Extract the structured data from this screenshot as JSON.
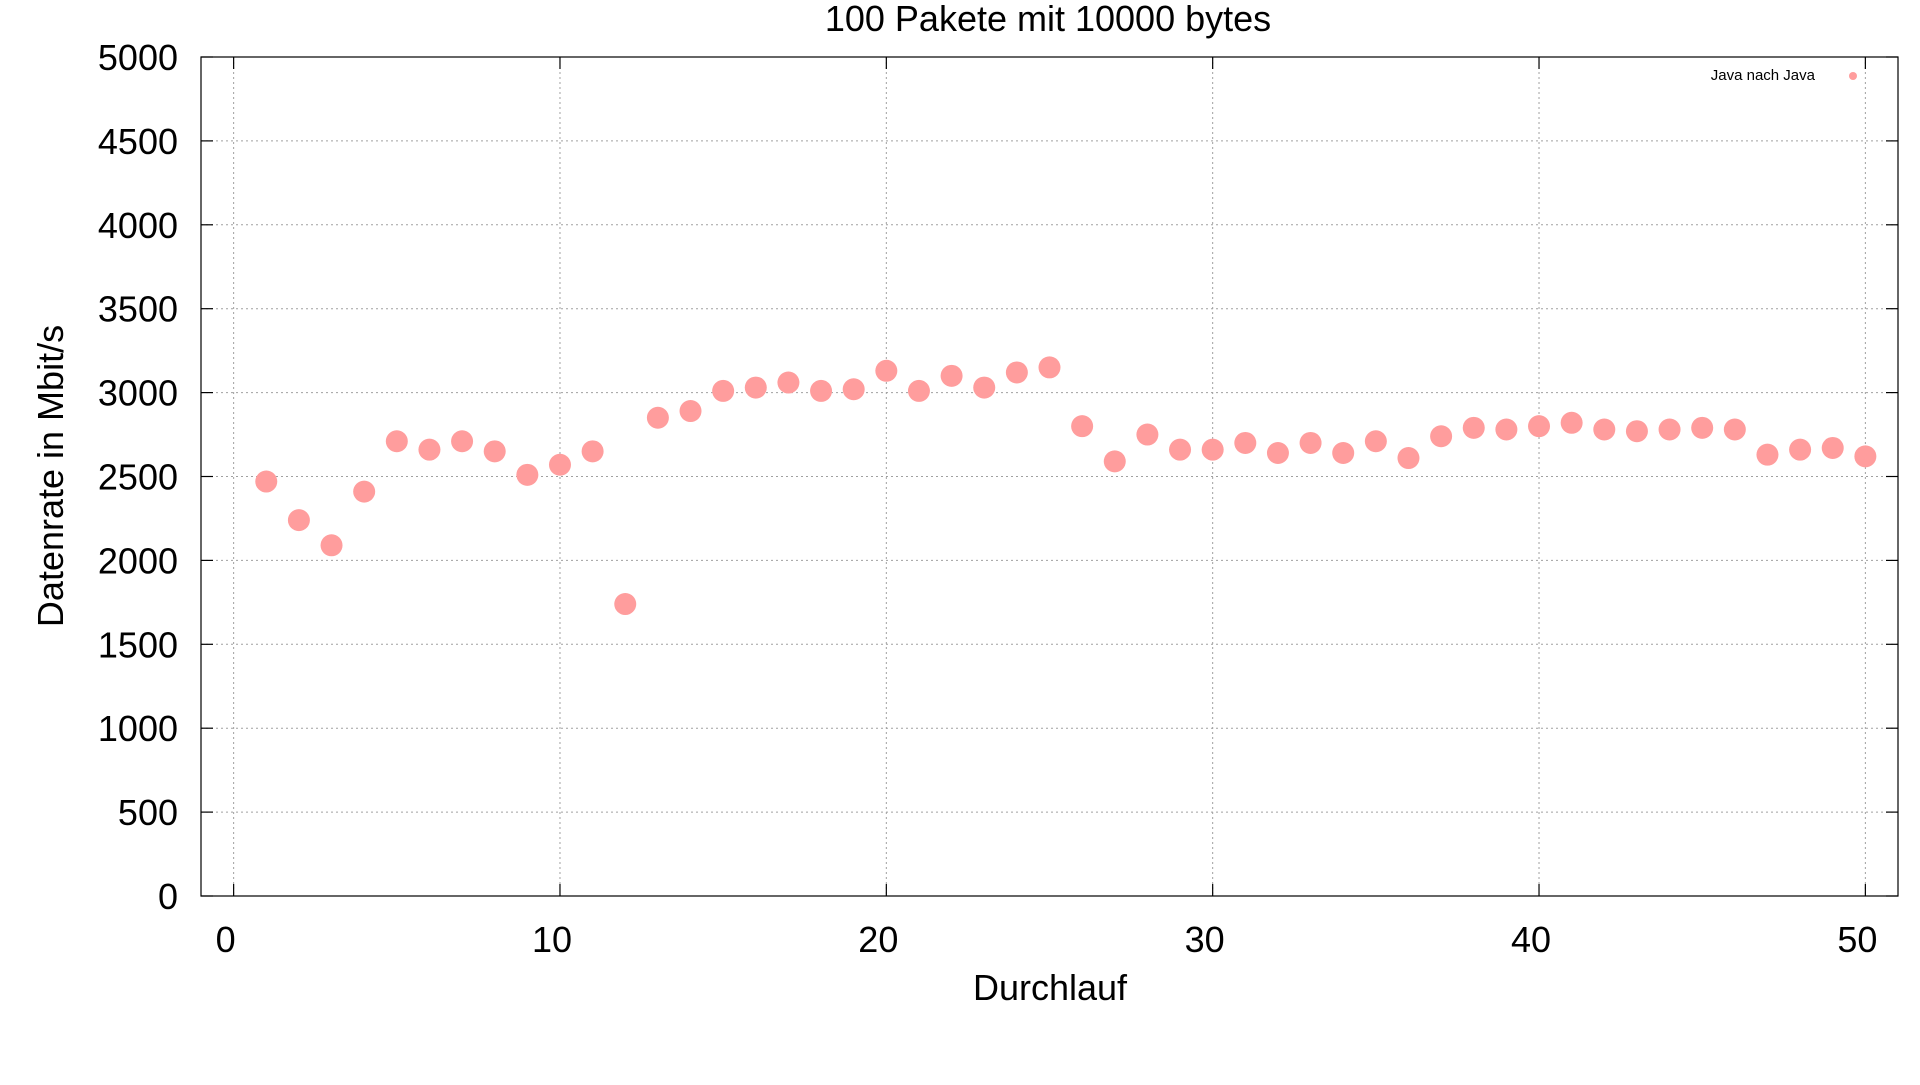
{
  "chart_data": {
    "type": "scatter",
    "title": "100 Pakete mit 10000 bytes",
    "xlabel": "Durchlauf",
    "ylabel": "Datenrate in Mbit/s",
    "xlim": [
      -1,
      51
    ],
    "ylim": [
      0,
      5000
    ],
    "xticks": [
      0,
      10,
      20,
      30,
      40,
      50
    ],
    "yticks": [
      0,
      500,
      1000,
      1500,
      2000,
      2500,
      3000,
      3500,
      4000,
      4500,
      5000
    ],
    "grid": true,
    "legend_position": "top-right",
    "series": [
      {
        "name": "Java nach Java",
        "color": "#ff9d9d",
        "x": [
          1,
          2,
          3,
          4,
          5,
          6,
          7,
          8,
          9,
          10,
          11,
          12,
          13,
          14,
          15,
          16,
          17,
          18,
          19,
          20,
          21,
          22,
          23,
          24,
          25,
          26,
          27,
          28,
          29,
          30,
          31,
          32,
          33,
          34,
          35,
          36,
          37,
          38,
          39,
          40,
          41,
          42,
          43,
          44,
          45,
          46,
          47,
          48,
          49,
          50
        ],
        "y": [
          2470,
          2240,
          2090,
          2410,
          2710,
          2660,
          2710,
          2650,
          2510,
          2570,
          2650,
          1740,
          2850,
          2890,
          3010,
          3030,
          3060,
          3010,
          3020,
          3130,
          3010,
          3100,
          3030,
          3120,
          3150,
          2800,
          2590,
          2750,
          2660,
          2660,
          2700,
          2640,
          2700,
          2640,
          2710,
          2610,
          2740,
          2790,
          2780,
          2800,
          2820,
          2780,
          2770,
          2780,
          2790,
          2780,
          2630,
          2660,
          2670,
          2620
        ]
      }
    ]
  }
}
